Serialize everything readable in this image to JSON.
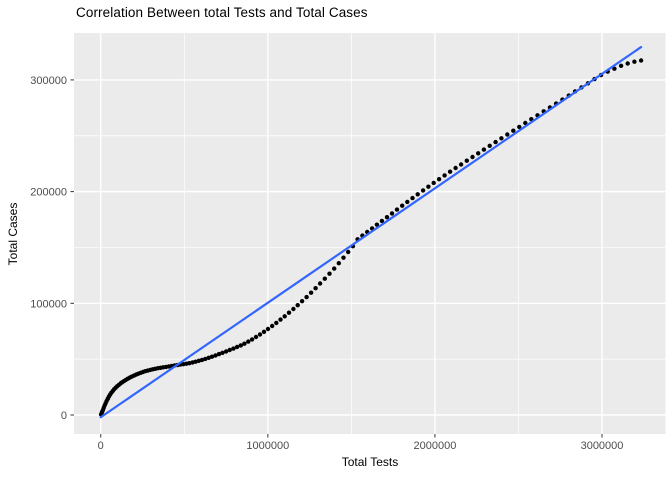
{
  "colors": {
    "background": "#ffffff",
    "panel_background": "#ebebeb",
    "gridline": "#ffffff",
    "point": "#000000",
    "trend_line": "#3366ff",
    "tick_label": "#4d4d4d",
    "tick_mark": "#333333",
    "title_text": "#000000"
  },
  "chart_data": {
    "type": "scatter",
    "title": "Correlation Between total Tests and Total Cases",
    "xlabel": "Total Tests",
    "ylabel": "Total Cases",
    "legend": "none",
    "grid": "on",
    "x_ticks": [
      0,
      1000000,
      2000000,
      3000000
    ],
    "x_tick_labels": [
      "0",
      "1000000",
      "2000000",
      "3000000"
    ],
    "x_minor_gridlines": [
      500000,
      1500000,
      2500000
    ],
    "y_ticks": [
      0,
      100000,
      200000,
      300000
    ],
    "y_tick_labels": [
      "0",
      "100000",
      "200000",
      "300000"
    ],
    "y_minor_gridlines": [
      50000,
      150000,
      250000
    ],
    "xlim": [
      -160000,
      3380000
    ],
    "ylim": [
      -17000,
      342000
    ],
    "trend_line": {
      "type": "linear",
      "x1": 0,
      "y1": -2000,
      "x2": 3234000,
      "y2": 329400
    },
    "points": [
      [
        2000,
        500
      ],
      [
        5000,
        1500
      ],
      [
        9000,
        3000
      ],
      [
        13000,
        4500
      ],
      [
        18000,
        6500
      ],
      [
        23000,
        8500
      ],
      [
        29000,
        10500
      ],
      [
        35000,
        12500
      ],
      [
        42000,
        14500
      ],
      [
        49000,
        16500
      ],
      [
        56000,
        18300
      ],
      [
        64000,
        20000
      ],
      [
        72000,
        21600
      ],
      [
        80000,
        23000
      ],
      [
        89000,
        24400
      ],
      [
        98000,
        25700
      ],
      [
        108000,
        27000
      ],
      [
        118000,
        28200
      ],
      [
        128000,
        29300
      ],
      [
        139000,
        30400
      ],
      [
        150000,
        31400
      ],
      [
        162000,
        32500
      ],
      [
        174000,
        33500
      ],
      [
        186000,
        34400
      ],
      [
        199000,
        35300
      ],
      [
        212000,
        36200
      ],
      [
        225000,
        37000
      ],
      [
        239000,
        37800
      ],
      [
        253000,
        38500
      ],
      [
        267000,
        39200
      ],
      [
        281000,
        39800
      ],
      [
        296000,
        40400
      ],
      [
        311000,
        40900
      ],
      [
        326000,
        41400
      ],
      [
        342000,
        41900
      ],
      [
        358000,
        42300
      ],
      [
        374000,
        42700
      ],
      [
        391000,
        43100
      ],
      [
        408000,
        43500
      ],
      [
        425000,
        43900
      ],
      [
        442000,
        44300
      ],
      [
        459000,
        44700
      ],
      [
        476000,
        45100
      ],
      [
        494000,
        45500
      ],
      [
        512000,
        45900
      ],
      [
        530000,
        46400
      ],
      [
        549000,
        47000
      ],
      [
        568000,
        47700
      ],
      [
        587000,
        48500
      ],
      [
        606000,
        49300
      ],
      [
        626000,
        50200
      ],
      [
        646000,
        51200
      ],
      [
        666000,
        52200
      ],
      [
        687000,
        53300
      ],
      [
        708000,
        54500
      ],
      [
        729000,
        55700
      ],
      [
        750000,
        56900
      ],
      [
        772000,
        58200
      ],
      [
        794000,
        59500
      ],
      [
        816000,
        60900
      ],
      [
        838000,
        62300
      ],
      [
        860000,
        63800
      ],
      [
        883000,
        65700
      ],
      [
        906000,
        67700
      ],
      [
        929000,
        69800
      ],
      [
        953000,
        72100
      ],
      [
        977000,
        74500
      ],
      [
        1001000,
        77000
      ],
      [
        1026000,
        79700
      ],
      [
        1051000,
        82500
      ],
      [
        1076000,
        85400
      ],
      [
        1101000,
        88400
      ],
      [
        1127000,
        91600
      ],
      [
        1153000,
        94900
      ],
      [
        1179000,
        98300
      ],
      [
        1205000,
        101900
      ],
      [
        1232000,
        105600
      ],
      [
        1259000,
        109500
      ],
      [
        1286000,
        113500
      ],
      [
        1313000,
        117700
      ],
      [
        1341000,
        122000
      ],
      [
        1369000,
        126500
      ],
      [
        1397000,
        131100
      ],
      [
        1425000,
        135900
      ],
      [
        1453000,
        140800
      ],
      [
        1481000,
        145900
      ],
      [
        1509000,
        151100
      ],
      [
        1537000,
        157300
      ],
      [
        1566000,
        160600
      ],
      [
        1595000,
        163800
      ],
      [
        1624000,
        167100
      ],
      [
        1653000,
        170400
      ],
      [
        1683000,
        173800
      ],
      [
        1713000,
        177100
      ],
      [
        1743000,
        180500
      ],
      [
        1773000,
        183900
      ],
      [
        1804000,
        187400
      ],
      [
        1835000,
        190800
      ],
      [
        1866000,
        194200
      ],
      [
        1897000,
        197600
      ],
      [
        1929000,
        201100
      ],
      [
        1961000,
        204400
      ],
      [
        1993000,
        207800
      ],
      [
        2025000,
        211100
      ],
      [
        2058000,
        214500
      ],
      [
        2091000,
        217800
      ],
      [
        2124000,
        221100
      ],
      [
        2157000,
        224300
      ],
      [
        2191000,
        227700
      ],
      [
        2225000,
        231000
      ],
      [
        2259000,
        234300
      ],
      [
        2293000,
        237600
      ],
      [
        2328000,
        241000
      ],
      [
        2363000,
        244300
      ],
      [
        2398000,
        247700
      ],
      [
        2433000,
        251100
      ],
      [
        2469000,
        254500
      ],
      [
        2505000,
        257900
      ],
      [
        2541000,
        261400
      ],
      [
        2577000,
        264800
      ],
      [
        2614000,
        268300
      ],
      [
        2651000,
        271900
      ],
      [
        2688000,
        275300
      ],
      [
        2725000,
        278800
      ],
      [
        2763000,
        282400
      ],
      [
        2801000,
        286000
      ],
      [
        2839000,
        289700
      ],
      [
        2877000,
        293300
      ],
      [
        2916000,
        297000
      ],
      [
        2955000,
        300700
      ],
      [
        2994000,
        304300
      ],
      [
        3034000,
        307400
      ],
      [
        3074000,
        310000
      ],
      [
        3114000,
        312600
      ],
      [
        3154000,
        314700
      ],
      [
        3194000,
        316300
      ],
      [
        3234000,
        317400
      ]
    ]
  }
}
